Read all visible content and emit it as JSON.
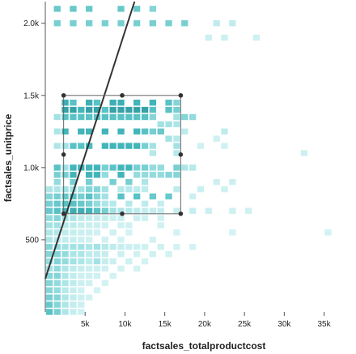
{
  "chart_data": {
    "type": "heatmap",
    "xlabel": "factsales_totalproductcost",
    "ylabel": "factsales_unitprice",
    "xlim": [
      0,
      38700
    ],
    "ylim": [
      0,
      2150
    ],
    "x_ticks": [
      {
        "value": 5000,
        "label": "5k"
      },
      {
        "value": 10000,
        "label": "10k"
      },
      {
        "value": 15000,
        "label": "15k"
      },
      {
        "value": 20000,
        "label": "20k"
      },
      {
        "value": 25000,
        "label": "25k"
      },
      {
        "value": 30000,
        "label": "30k"
      },
      {
        "value": 35000,
        "label": "35k"
      }
    ],
    "y_ticks": [
      {
        "value": 500,
        "label": "500"
      },
      {
        "value": 1000,
        "label": "1.0k"
      },
      {
        "value": 1500,
        "label": "1.5k"
      },
      {
        "value": 2000,
        "label": "2.0k"
      }
    ],
    "grid": false,
    "legend": false,
    "colors": {
      "low": "#e0f7f7",
      "mid": "#a8e4e6",
      "high": "#45b9bd",
      "max": "#2a8f95"
    },
    "bin_size": {
      "x": 1000,
      "y": 50
    },
    "cells": [
      [
        1500,
        2100,
        0.55
      ],
      [
        3500,
        2100,
        0.55
      ],
      [
        5500,
        2100,
        0.55
      ],
      [
        9500,
        2100,
        0.55
      ],
      [
        11500,
        2100,
        0.55
      ],
      [
        13500,
        2100,
        0.45
      ],
      [
        1500,
        2000,
        0.5
      ],
      [
        3500,
        2000,
        0.5
      ],
      [
        5500,
        2000,
        0.5
      ],
      [
        7500,
        2000,
        0.5
      ],
      [
        9500,
        2000,
        0.5
      ],
      [
        11500,
        2000,
        0.5
      ],
      [
        13500,
        2000,
        0.5
      ],
      [
        15500,
        2000,
        0.5
      ],
      [
        17500,
        2000,
        0.5
      ],
      [
        21500,
        2000,
        0.2
      ],
      [
        23500,
        2000,
        0.2
      ],
      [
        20500,
        1900,
        0.12
      ],
      [
        22500,
        1900,
        0.12
      ],
      [
        26500,
        1900,
        0.1
      ],
      [
        2500,
        1450,
        0.75
      ],
      [
        3500,
        1450,
        0.6
      ],
      [
        5500,
        1450,
        0.75
      ],
      [
        6500,
        1450,
        0.6
      ],
      [
        8500,
        1450,
        0.75
      ],
      [
        9500,
        1450,
        0.75
      ],
      [
        11500,
        1450,
        0.7
      ],
      [
        13500,
        1450,
        0.7
      ],
      [
        15500,
        1450,
        0.6
      ],
      [
        16500,
        1450,
        0.45
      ],
      [
        2500,
        1400,
        0.85
      ],
      [
        3500,
        1400,
        0.85
      ],
      [
        4500,
        1400,
        0.7
      ],
      [
        5500,
        1400,
        0.85
      ],
      [
        6500,
        1400,
        0.85
      ],
      [
        7500,
        1400,
        0.6
      ],
      [
        8500,
        1400,
        0.85
      ],
      [
        9500,
        1400,
        0.85
      ],
      [
        10500,
        1400,
        0.85
      ],
      [
        11500,
        1400,
        0.85
      ],
      [
        12500,
        1400,
        0.85
      ],
      [
        13500,
        1400,
        0.6
      ],
      [
        15500,
        1400,
        0.6
      ],
      [
        16500,
        1400,
        0.5
      ],
      [
        1500,
        1350,
        0.35
      ],
      [
        2500,
        1350,
        0.6
      ],
      [
        3500,
        1350,
        0.6
      ],
      [
        4500,
        1350,
        0.6
      ],
      [
        5500,
        1350,
        0.6
      ],
      [
        6500,
        1350,
        0.6
      ],
      [
        7500,
        1350,
        0.6
      ],
      [
        8500,
        1350,
        0.6
      ],
      [
        9500,
        1350,
        0.6
      ],
      [
        10500,
        1350,
        0.6
      ],
      [
        11500,
        1350,
        0.6
      ],
      [
        12500,
        1350,
        0.6
      ],
      [
        13500,
        1350,
        0.45
      ],
      [
        16500,
        1350,
        0.35
      ],
      [
        17500,
        1350,
        0.45
      ],
      [
        18500,
        1350,
        0.4
      ],
      [
        14500,
        1300,
        0.35
      ],
      [
        15500,
        1300,
        0.35
      ],
      [
        16500,
        1300,
        0.3
      ],
      [
        1500,
        1250,
        0.3
      ],
      [
        2500,
        1250,
        0.7
      ],
      [
        4500,
        1250,
        0.7
      ],
      [
        5500,
        1250,
        0.7
      ],
      [
        7500,
        1250,
        0.7
      ],
      [
        9500,
        1250,
        0.7
      ],
      [
        11500,
        1250,
        0.7
      ],
      [
        12500,
        1250,
        0.6
      ],
      [
        13500,
        1250,
        0.5
      ],
      [
        14500,
        1250,
        0.55
      ],
      [
        17500,
        1250,
        0.2
      ],
      [
        22500,
        1250,
        0.2
      ],
      [
        15500,
        1200,
        0.35
      ],
      [
        16500,
        1200,
        0.25
      ],
      [
        21500,
        1200,
        0.1
      ],
      [
        1500,
        1150,
        0.3
      ],
      [
        2500,
        1150,
        0.35
      ],
      [
        3500,
        1150,
        0.6
      ],
      [
        4500,
        1150,
        0.6
      ],
      [
        5500,
        1150,
        0.65
      ],
      [
        7500,
        1150,
        0.7
      ],
      [
        8500,
        1150,
        0.7
      ],
      [
        9500,
        1150,
        0.7
      ],
      [
        10500,
        1150,
        0.7
      ],
      [
        11500,
        1150,
        0.7
      ],
      [
        12500,
        1150,
        0.5
      ],
      [
        13500,
        1150,
        0.35
      ],
      [
        16500,
        1150,
        0.35
      ],
      [
        19500,
        1150,
        0.1
      ],
      [
        22500,
        1150,
        0.1
      ],
      [
        13500,
        1100,
        0.25
      ],
      [
        16500,
        1100,
        0.25
      ],
      [
        32500,
        1100,
        0.12
      ],
      [
        1500,
        1000,
        0.6
      ],
      [
        2500,
        1000,
        0.35
      ],
      [
        3500,
        1000,
        0.7
      ],
      [
        4500,
        1000,
        0.7
      ],
      [
        5500,
        1000,
        0.7
      ],
      [
        6500,
        1000,
        0.7
      ],
      [
        7500,
        1000,
        0.5
      ],
      [
        8500,
        1000,
        0.6
      ],
      [
        9500,
        1000,
        0.7
      ],
      [
        10500,
        1000,
        0.7
      ],
      [
        11500,
        1000,
        0.5
      ],
      [
        12500,
        1000,
        0.5
      ],
      [
        13500,
        1000,
        0.4
      ],
      [
        14500,
        1000,
        0.4
      ],
      [
        16500,
        1000,
        0.5
      ],
      [
        17500,
        1000,
        0.3
      ],
      [
        18500,
        1000,
        0.25
      ],
      [
        1500,
        950,
        0.5
      ],
      [
        2500,
        950,
        0.5
      ],
      [
        3500,
        950,
        0.7
      ],
      [
        5500,
        950,
        0.7
      ],
      [
        6500,
        950,
        0.7
      ],
      [
        7500,
        950,
        0.4
      ],
      [
        9500,
        950,
        0.7
      ],
      [
        11500,
        950,
        0.4
      ],
      [
        12500,
        950,
        0.4
      ],
      [
        13500,
        950,
        0.4
      ],
      [
        14500,
        950,
        0.4
      ],
      [
        15500,
        950,
        0.45
      ],
      [
        16500,
        950,
        0.45
      ],
      [
        1500,
        900,
        0.4
      ],
      [
        3500,
        900,
        0.5
      ],
      [
        5500,
        900,
        0.5
      ],
      [
        8500,
        900,
        0.5
      ],
      [
        10500,
        900,
        0.5
      ],
      [
        12500,
        900,
        0.3
      ],
      [
        21500,
        900,
        0.12
      ],
      [
        23500,
        900,
        0.12
      ],
      [
        500,
        850,
        0.3
      ],
      [
        1500,
        850,
        0.3
      ],
      [
        2500,
        850,
        0.35
      ],
      [
        3500,
        850,
        0.35
      ],
      [
        4500,
        850,
        0.35
      ],
      [
        5500,
        850,
        0.45
      ],
      [
        6500,
        850,
        0.45
      ],
      [
        7500,
        850,
        0.35
      ],
      [
        9500,
        850,
        0.25
      ],
      [
        10500,
        850,
        0.25
      ],
      [
        11500,
        850,
        0.2
      ],
      [
        12500,
        850,
        0.2
      ],
      [
        16500,
        850,
        0.2
      ],
      [
        19500,
        850,
        0.12
      ],
      [
        22500,
        850,
        0.1
      ],
      [
        500,
        800,
        0.45
      ],
      [
        1500,
        800,
        0.5
      ],
      [
        2500,
        800,
        0.55
      ],
      [
        3500,
        800,
        0.6
      ],
      [
        4500,
        800,
        0.5
      ],
      [
        5500,
        800,
        0.6
      ],
      [
        6500,
        800,
        0.45
      ],
      [
        7500,
        800,
        0.35
      ],
      [
        9500,
        800,
        0.6
      ],
      [
        11500,
        800,
        0.6
      ],
      [
        13500,
        800,
        0.55
      ],
      [
        15500,
        800,
        0.55
      ],
      [
        18500,
        800,
        0.12
      ],
      [
        500,
        750,
        0.5
      ],
      [
        1500,
        750,
        0.55
      ],
      [
        2500,
        750,
        0.6
      ],
      [
        3500,
        750,
        0.6
      ],
      [
        4500,
        750,
        0.55
      ],
      [
        5500,
        750,
        0.5
      ],
      [
        6500,
        750,
        0.4
      ],
      [
        7500,
        750,
        0.3
      ],
      [
        8500,
        750,
        0.25
      ],
      [
        10500,
        750,
        0.25
      ],
      [
        12500,
        750,
        0.2
      ],
      [
        14500,
        750,
        0.15
      ],
      [
        500,
        700,
        0.55
      ],
      [
        1500,
        700,
        0.6
      ],
      [
        2500,
        700,
        0.7
      ],
      [
        3500,
        700,
        0.75
      ],
      [
        4500,
        700,
        0.75
      ],
      [
        5500,
        700,
        0.7
      ],
      [
        6500,
        700,
        0.6
      ],
      [
        7500,
        700,
        0.5
      ],
      [
        8500,
        700,
        0.35
      ],
      [
        9500,
        700,
        0.3
      ],
      [
        10500,
        700,
        0.25
      ],
      [
        11500,
        700,
        0.2
      ],
      [
        12500,
        700,
        0.15
      ],
      [
        13500,
        700,
        0.15
      ],
      [
        14500,
        700,
        0.15
      ],
      [
        16500,
        700,
        0.15
      ],
      [
        18500,
        700,
        0.15
      ],
      [
        20500,
        700,
        0.12
      ],
      [
        23500,
        700,
        0.1
      ],
      [
        25500,
        700,
        0.1
      ],
      [
        500,
        650,
        0.4
      ],
      [
        1500,
        650,
        0.45
      ],
      [
        2500,
        650,
        0.35
      ],
      [
        3500,
        650,
        0.3
      ],
      [
        4500,
        650,
        0.2
      ],
      [
        5500,
        650,
        0.18
      ],
      [
        6500,
        650,
        0.15
      ],
      [
        7500,
        650,
        0.15
      ],
      [
        8500,
        650,
        0.12
      ],
      [
        9500,
        650,
        0.12
      ],
      [
        11500,
        650,
        0.12
      ],
      [
        12500,
        650,
        0.1
      ],
      [
        14500,
        650,
        0.1
      ],
      [
        500,
        600,
        0.35
      ],
      [
        1500,
        600,
        0.35
      ],
      [
        2500,
        600,
        0.25
      ],
      [
        3500,
        600,
        0.2
      ],
      [
        4500,
        600,
        0.15
      ],
      [
        5500,
        600,
        0.12
      ],
      [
        6500,
        600,
        0.12
      ],
      [
        7500,
        600,
        0.1
      ],
      [
        9500,
        600,
        0.1
      ],
      [
        10500,
        600,
        0.1
      ],
      [
        14500,
        600,
        0.1
      ],
      [
        500,
        550,
        0.3
      ],
      [
        1500,
        550,
        0.28
      ],
      [
        2500,
        550,
        0.2
      ],
      [
        3500,
        550,
        0.16
      ],
      [
        4500,
        550,
        0.12
      ],
      [
        5500,
        550,
        0.12
      ],
      [
        6500,
        550,
        0.1
      ],
      [
        8500,
        550,
        0.1
      ],
      [
        10500,
        550,
        0.08
      ],
      [
        16500,
        550,
        0.08
      ],
      [
        23500,
        550,
        0.08
      ],
      [
        35500,
        550,
        0.08
      ],
      [
        500,
        500,
        0.3
      ],
      [
        1500,
        500,
        0.25
      ],
      [
        2500,
        500,
        0.18
      ],
      [
        3500,
        500,
        0.14
      ],
      [
        4500,
        500,
        0.12
      ],
      [
        5500,
        500,
        0.1
      ],
      [
        7500,
        500,
        0.1
      ],
      [
        9500,
        500,
        0.08
      ],
      [
        13500,
        500,
        0.08
      ],
      [
        500,
        450,
        0.45
      ],
      [
        1500,
        450,
        0.4
      ],
      [
        2500,
        450,
        0.35
      ],
      [
        3500,
        450,
        0.35
      ],
      [
        4500,
        450,
        0.35
      ],
      [
        5500,
        450,
        0.3
      ],
      [
        6500,
        450,
        0.35
      ],
      [
        7500,
        450,
        0.25
      ],
      [
        8500,
        450,
        0.2
      ],
      [
        9500,
        450,
        0.15
      ],
      [
        10500,
        450,
        0.12
      ],
      [
        11500,
        450,
        0.12
      ],
      [
        12500,
        450,
        0.1
      ],
      [
        14500,
        450,
        0.1
      ],
      [
        16500,
        450,
        0.08
      ],
      [
        18500,
        450,
        0.08
      ],
      [
        500,
        400,
        0.45
      ],
      [
        1500,
        400,
        0.45
      ],
      [
        2500,
        400,
        0.4
      ],
      [
        3500,
        400,
        0.3
      ],
      [
        4500,
        400,
        0.3
      ],
      [
        5500,
        400,
        0.2
      ],
      [
        6500,
        400,
        0.2
      ],
      [
        7500,
        400,
        0.15
      ],
      [
        9500,
        400,
        0.12
      ],
      [
        11500,
        400,
        0.1
      ],
      [
        13500,
        400,
        0.1
      ],
      [
        15500,
        400,
        0.08
      ],
      [
        500,
        350,
        0.4
      ],
      [
        1500,
        350,
        0.45
      ],
      [
        2500,
        350,
        0.4
      ],
      [
        3500,
        350,
        0.35
      ],
      [
        4500,
        350,
        0.3
      ],
      [
        5500,
        350,
        0.2
      ],
      [
        6500,
        350,
        0.35
      ],
      [
        7500,
        350,
        0.15
      ],
      [
        8500,
        350,
        0.12
      ],
      [
        10500,
        350,
        0.1
      ],
      [
        12500,
        350,
        0.08
      ],
      [
        500,
        300,
        0.35
      ],
      [
        1500,
        300,
        0.4
      ],
      [
        2500,
        300,
        0.3
      ],
      [
        3500,
        300,
        0.2
      ],
      [
        4500,
        300,
        0.15
      ],
      [
        5500,
        300,
        0.12
      ],
      [
        6500,
        300,
        0.12
      ],
      [
        7500,
        300,
        0.1
      ],
      [
        9500,
        300,
        0.08
      ],
      [
        11500,
        300,
        0.08
      ],
      [
        500,
        250,
        0.45
      ],
      [
        1500,
        250,
        0.45
      ],
      [
        2500,
        250,
        0.3
      ],
      [
        3500,
        250,
        0.18
      ],
      [
        4500,
        250,
        0.12
      ],
      [
        5500,
        250,
        0.1
      ],
      [
        6500,
        250,
        0.1
      ],
      [
        8500,
        250,
        0.08
      ],
      [
        500,
        200,
        0.45
      ],
      [
        1500,
        200,
        0.4
      ],
      [
        2500,
        200,
        0.3
      ],
      [
        3500,
        200,
        0.2
      ],
      [
        4500,
        200,
        0.12
      ],
      [
        5500,
        200,
        0.1
      ],
      [
        7500,
        200,
        0.08
      ],
      [
        500,
        150,
        0.45
      ],
      [
        1500,
        150,
        0.4
      ],
      [
        2500,
        150,
        0.25
      ],
      [
        3500,
        150,
        0.15
      ],
      [
        4500,
        150,
        0.1
      ],
      [
        6500,
        150,
        0.08
      ],
      [
        500,
        100,
        0.5
      ],
      [
        1500,
        100,
        0.45
      ],
      [
        2500,
        100,
        0.3
      ],
      [
        3500,
        100,
        0.18
      ],
      [
        4500,
        100,
        0.12
      ],
      [
        5500,
        100,
        0.08
      ],
      [
        500,
        50,
        0.55
      ],
      [
        1500,
        50,
        0.45
      ],
      [
        2500,
        50,
        0.3
      ],
      [
        3500,
        50,
        0.18
      ],
      [
        4500,
        50,
        0.12
      ],
      [
        500,
        0,
        0.6
      ],
      [
        1500,
        0,
        0.5
      ],
      [
        2500,
        0,
        0.3
      ],
      [
        3500,
        0,
        0.15
      ],
      [
        4500,
        0,
        0.1
      ]
    ],
    "trend_line": {
      "x1": 0,
      "y1": 230,
      "x2": 11200,
      "y2": 2150,
      "color": "#333333"
    },
    "selection_box": {
      "x0": 2300,
      "x1": 17000,
      "y0": 680,
      "y1": 1500,
      "color": "#666666"
    }
  }
}
